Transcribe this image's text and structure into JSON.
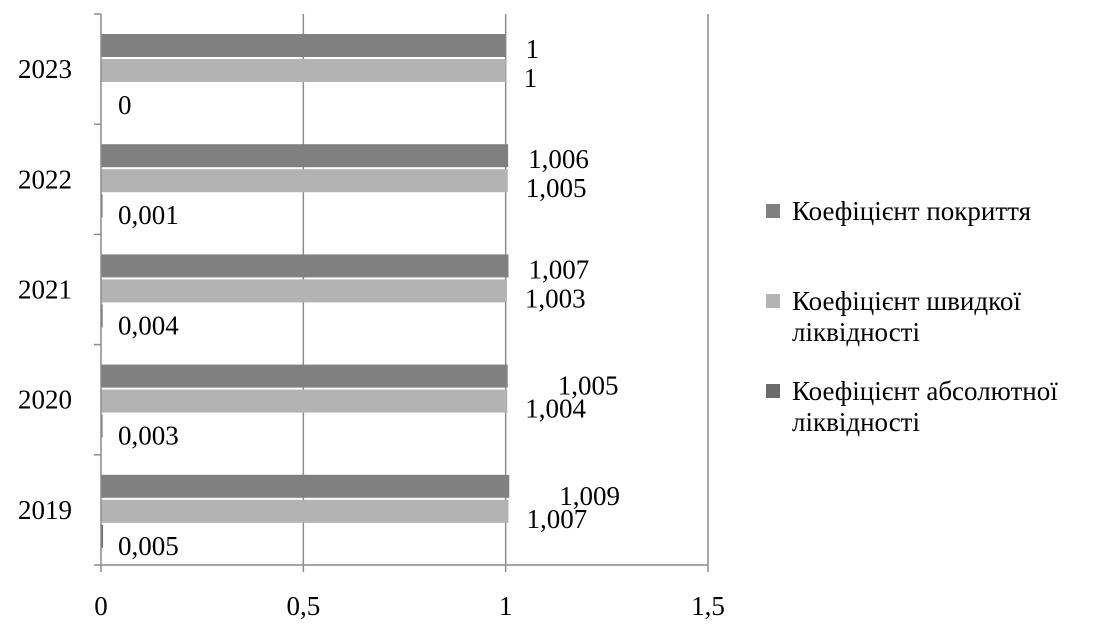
{
  "chart_data": {
    "type": "bar",
    "orientation": "horizontal",
    "categories": [
      "2019",
      "2020",
      "2021",
      "2022",
      "2023"
    ],
    "series": [
      {
        "name": "Коефіцієнт абсолютної ліквідності",
        "color": "#6b6b6b",
        "values": [
          0.005,
          0.003,
          0.004,
          0.001,
          0
        ],
        "labels": [
          "0,005",
          "0,003",
          "0,004",
          "0,001",
          "0"
        ]
      },
      {
        "name": "Коефіцієнт швидкої ліквідності",
        "color": "#b3b3b3",
        "values": [
          1.007,
          1.004,
          1.003,
          1.005,
          1
        ],
        "labels": [
          "1,007",
          "1,004",
          "1,003",
          "1,005",
          "1"
        ]
      },
      {
        "name": "Коефіцієнт покриття",
        "color": "#808080",
        "values": [
          1.009,
          1.005,
          1.007,
          1.006,
          1
        ],
        "labels": [
          "1,009",
          "1,005",
          "1,007",
          "1,006",
          "1"
        ]
      }
    ],
    "x_ticks": [
      "0",
      "0,5",
      "1",
      "1,5"
    ],
    "xlim": [
      0,
      1.5
    ],
    "grid": true,
    "legend_position": "right",
    "title": "",
    "xlabel": "",
    "ylabel": ""
  }
}
